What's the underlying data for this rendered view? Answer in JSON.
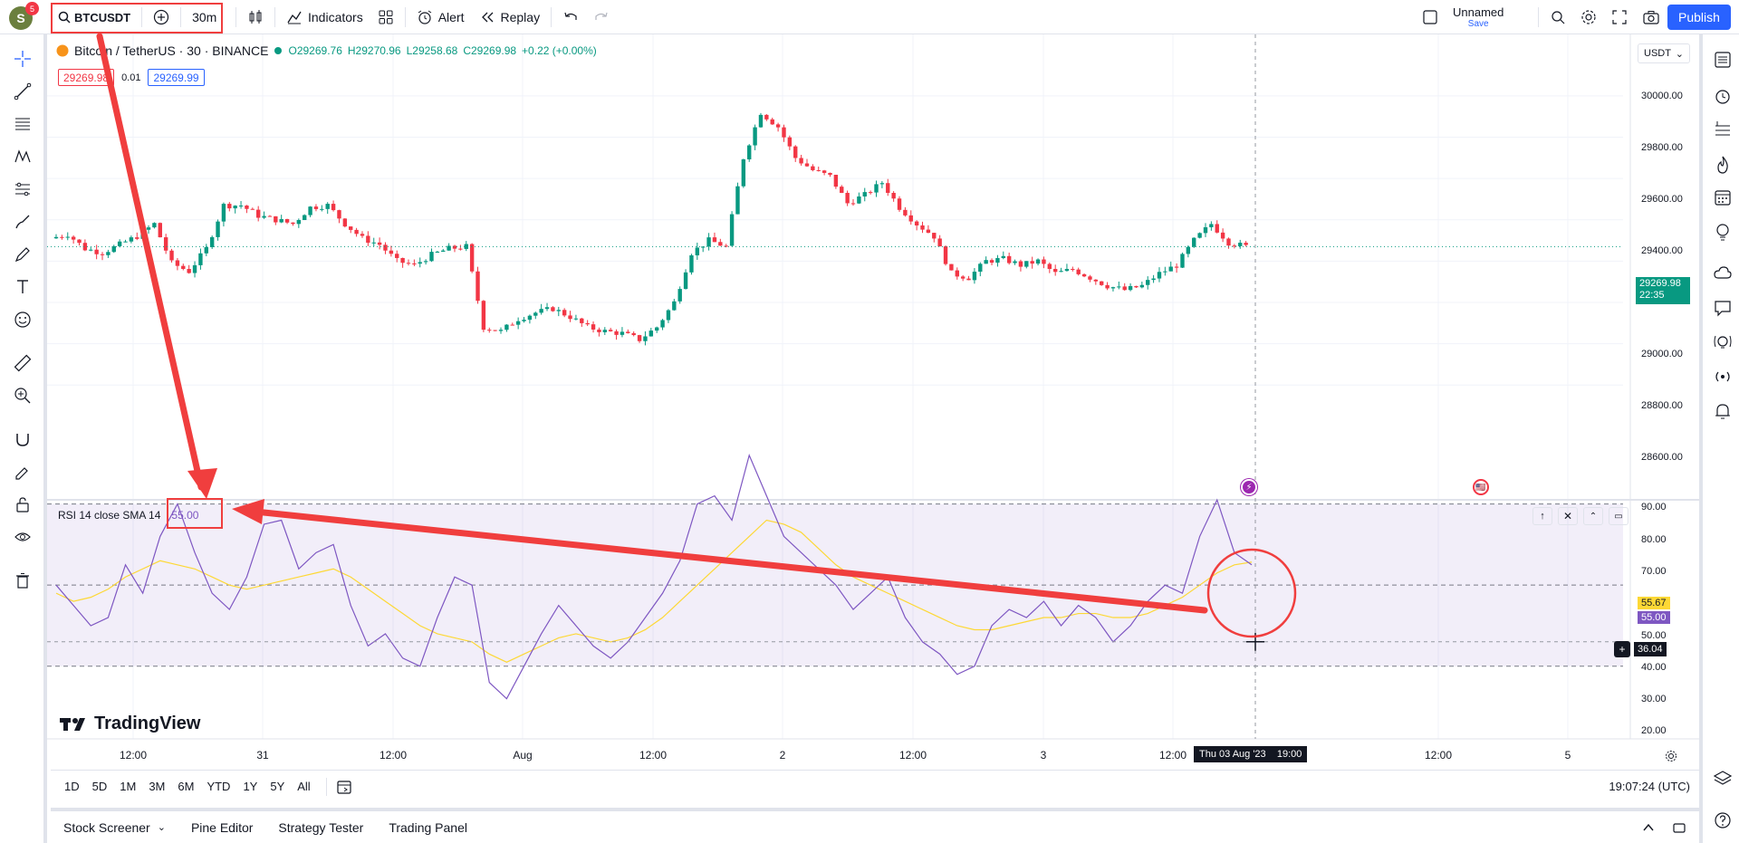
{
  "topbar": {
    "avatar_letter": "S",
    "notif_count": "5",
    "symbol": "BTCUSDT",
    "interval": "30m",
    "indicators_label": "Indicators",
    "alert_label": "Alert",
    "replay_label": "Replay",
    "layout_name": "Unnamed",
    "layout_save": "Save",
    "publish_label": "Publish"
  },
  "legend": {
    "title": "Bitcoin / TetherUS · 30 · BINANCE",
    "open": "O29269.76",
    "high": "H29270.96",
    "low": "L29258.68",
    "close": "C29269.98",
    "change": "+0.22 (+0.00%)",
    "sell_price": "29269.98",
    "spread": "0.01",
    "buy_price": "29269.99",
    "currency": "USDT"
  },
  "price_axis": {
    "ticks": [
      "30000.00",
      "29800.00",
      "29600.00",
      "29400.00",
      "29000.00",
      "28800.00",
      "28600.00"
    ],
    "last_price": "29269.98",
    "countdown": "22:35"
  },
  "rsi": {
    "label": "RSI 14 close SMA 14",
    "value": "55.00",
    "ticks": [
      "90.00",
      "80.00",
      "70.00",
      "50.00",
      "40.00",
      "30.00",
      "20.00"
    ],
    "sma_value": "55.67",
    "rsi_value": "55.00",
    "cursor_value": "36.04"
  },
  "time_axis": {
    "labels": [
      "12:00",
      "31",
      "12:00",
      "Aug",
      "12:00",
      "2",
      "12:00",
      "3",
      "12:00",
      "12:00",
      "5"
    ],
    "crosshair_label": "Thu 03 Aug '23    19:00"
  },
  "watermark": "TradingView",
  "bottom": {
    "ranges": [
      "1D",
      "5D",
      "1M",
      "3M",
      "6M",
      "YTD",
      "1Y",
      "5Y",
      "All"
    ],
    "clock": "19:07:24 (UTC)"
  },
  "panels": {
    "tabs": [
      "Stock Screener",
      "Pine Editor",
      "Strategy Tester",
      "Trading Panel"
    ]
  },
  "colors": {
    "up": "#089981",
    "down": "#f23645",
    "accent": "#2962ff",
    "rsi": "#7e57c2",
    "sma": "#fdd835",
    "annotation": "#f03e3e"
  },
  "chart_data": {
    "type": "candlestick",
    "title": "Bitcoin / TetherUS · 30 · BINANCE",
    "ylabel": "USDT",
    "ylim": [
      28500,
      30100
    ],
    "x": [
      "30 Jul 12:00",
      "31 Jul",
      "31 Jul 12:00",
      "Aug 1",
      "1 Aug 12:00",
      "Aug 2",
      "2 Aug 12:00",
      "Aug 3",
      "3 Aug 12:00"
    ],
    "close_path": [
      29310,
      29330,
      29260,
      29240,
      29280,
      29320,
      29380,
      29190,
      29150,
      29260,
      29470,
      29470,
      29420,
      29400,
      29380,
      29460,
      29470,
      29380,
      29310,
      29280,
      29200,
      29180,
      29230,
      29260,
      29270,
      28880,
      28860,
      28920,
      28950,
      28970,
      28930,
      28880,
      28860,
      28850,
      28820,
      28880,
      29000,
      29240,
      29300,
      29270,
      29700,
      29920,
      29850,
      29700,
      29640,
      29610,
      29480,
      29520,
      29580,
      29460,
      29380,
      29320,
      29140,
      29120,
      29200,
      29210,
      29180,
      29200,
      29140,
      29160,
      29120,
      29080,
      29060,
      29080,
      29140,
      29180,
      29300,
      29380,
      29290,
      29269.98
    ],
    "rsi": {
      "ylim": [
        15,
        92
      ],
      "overbought": 70,
      "oversold": 30,
      "middle": 50,
      "values": [
        50,
        45,
        40,
        42,
        55,
        48,
        62,
        70,
        58,
        48,
        44,
        52,
        65,
        66,
        54,
        58,
        60,
        45,
        35,
        38,
        32,
        30,
        42,
        52,
        50,
        26,
        22,
        30,
        38,
        45,
        40,
        35,
        32,
        36,
        42,
        48,
        56,
        70,
        72,
        66,
        82,
        72,
        62,
        58,
        54,
        50,
        44,
        48,
        52,
        42,
        36,
        33,
        28,
        30,
        40,
        44,
        42,
        46,
        40,
        45,
        42,
        36,
        40,
        46,
        50,
        48,
        62,
        71,
        58,
        55
      ],
      "sma": [
        48,
        46,
        47,
        49,
        52,
        54,
        56,
        55,
        54,
        52,
        50,
        49,
        50,
        51,
        52,
        53,
        54,
        52,
        49,
        46,
        43,
        40,
        38,
        37,
        36,
        33,
        31,
        33,
        35,
        37,
        38,
        37,
        36,
        37,
        39,
        42,
        46,
        50,
        54,
        58,
        62,
        66,
        65,
        63,
        59,
        55,
        52,
        50,
        48,
        46,
        44,
        42,
        40,
        39,
        39,
        40,
        41,
        42,
        42,
        43,
        43,
        42,
        42,
        43,
        45,
        47,
        50,
        53,
        55,
        55.67
      ]
    }
  }
}
